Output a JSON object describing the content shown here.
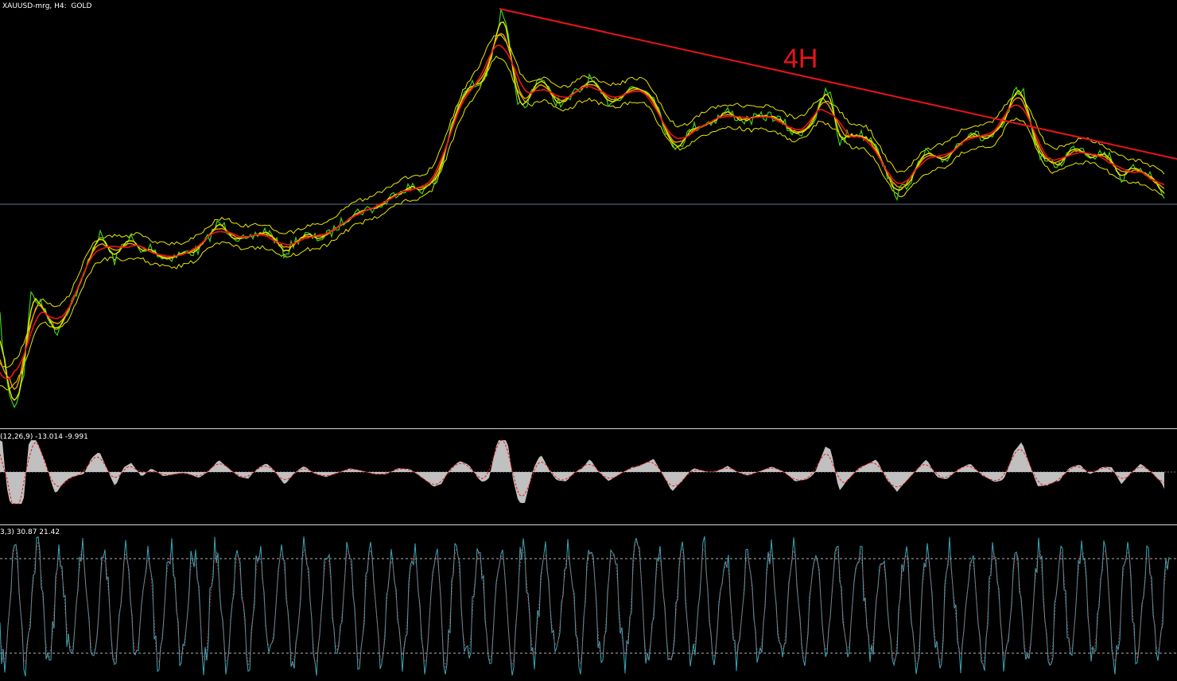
{
  "window": {
    "title": "XAUUSD-mrg, H4:  GOLD"
  },
  "annotations": {
    "trend_label": "4H",
    "trend_color": "#e8141a"
  },
  "colors": {
    "background": "#000000",
    "price_yellow": "#e8e800",
    "ma_green": "#3fcf1a",
    "ma_red": "#e8141a",
    "envelope": "#e8e800",
    "hline": "#5f6f8f",
    "histogram": "#c0c0c0",
    "signal": "#e8141a",
    "stoch_main": "#3aa7b8",
    "stoch_signal": "#d23a3a",
    "level": "#b0b0b0"
  },
  "macd": {
    "label": "(12,26,9) -13.014 -9.991"
  },
  "stochastic": {
    "label": "3,3) 30.87 21.42"
  }
}
